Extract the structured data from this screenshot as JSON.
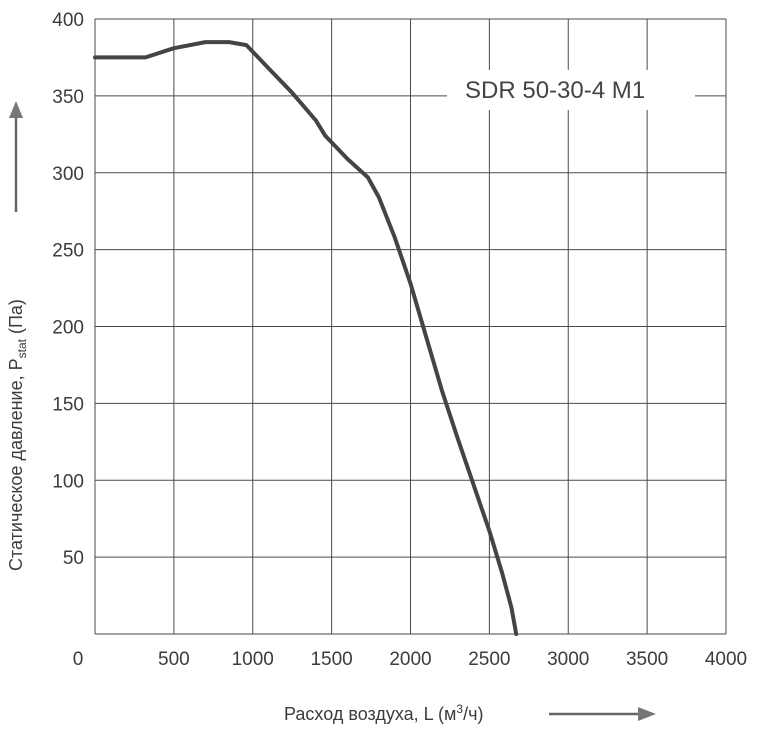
{
  "chart_data": {
    "type": "line",
    "title": "SDR 50-30-4 M1",
    "xlabel": "Расход воздуха, L (м³/ч)",
    "xlabel_main": "Расход воздуха, L (м",
    "xlabel_sup": "3",
    "xlabel_tail": "/ч)",
    "ylabel_main": "Статическое давление, P",
    "ylabel_sub": "stat",
    "ylabel_tail": " (Па)",
    "xlim": [
      0,
      4000
    ],
    "ylim": [
      0,
      400
    ],
    "xticks": [
      0,
      500,
      1000,
      1500,
      2000,
      2500,
      3000,
      3500,
      4000
    ],
    "yticks": [
      50,
      100,
      150,
      200,
      250,
      300,
      350,
      400
    ],
    "grid": true,
    "series": [
      {
        "color": "#444444",
        "x": [
          0,
          320,
          500,
          700,
          850,
          960,
          1100,
          1250,
          1400,
          1460,
          1600,
          1730,
          1800,
          1900,
          2000,
          2100,
          2200,
          2300,
          2400,
          2500,
          2580,
          2640,
          2670
        ],
        "y": [
          375,
          375,
          381,
          385,
          385,
          383,
          368,
          352,
          334,
          324,
          309,
          297,
          284,
          258,
          228,
          193,
          158,
          127,
          97,
          67,
          40,
          17,
          0
        ]
      }
    ]
  }
}
